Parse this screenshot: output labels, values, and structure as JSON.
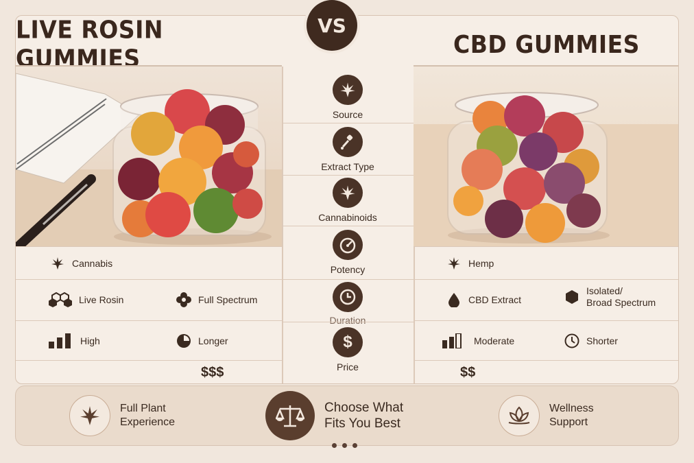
{
  "left": {
    "title": "LIVE ROSIN GUMMIES",
    "source": "Cannabis",
    "extract": "Live Rosin",
    "cannabinoids": "Full Spectrum",
    "potency": "High",
    "duration": "Longer",
    "price": "$$$"
  },
  "vs": "VS",
  "right": {
    "title": "CBD GUMMIES",
    "source": "Hemp",
    "extract": "CBD Extract",
    "cannabinoids": "Isolated/\nBroad Spectrum",
    "potency": "Moderate",
    "duration": "Shorter",
    "price": "$$"
  },
  "middle": {
    "source": "Source",
    "extract": "Extract Type",
    "cannabinoids": "Cannabinoids",
    "potency": "Potency",
    "duration": "Duration",
    "price": "Price"
  },
  "bottom": {
    "left": "Full Plant\nExperience",
    "center": "Choose What\nFits You Best",
    "right": "Wellness\nSupport"
  },
  "colors": {
    "background": "#f1e7dd",
    "dark_brown": "#3f2a1f",
    "panel": "#f6eee6"
  },
  "icons": [
    "leaf-icon",
    "dropper-icon",
    "cannabis-icon",
    "gauge-icon",
    "clock-icon",
    "dollar-icon",
    "hexagons-icon",
    "spectrum-icon",
    "bars-icon",
    "drop-icon",
    "hexagon-icon",
    "scale-icon",
    "lotus-icon"
  ]
}
